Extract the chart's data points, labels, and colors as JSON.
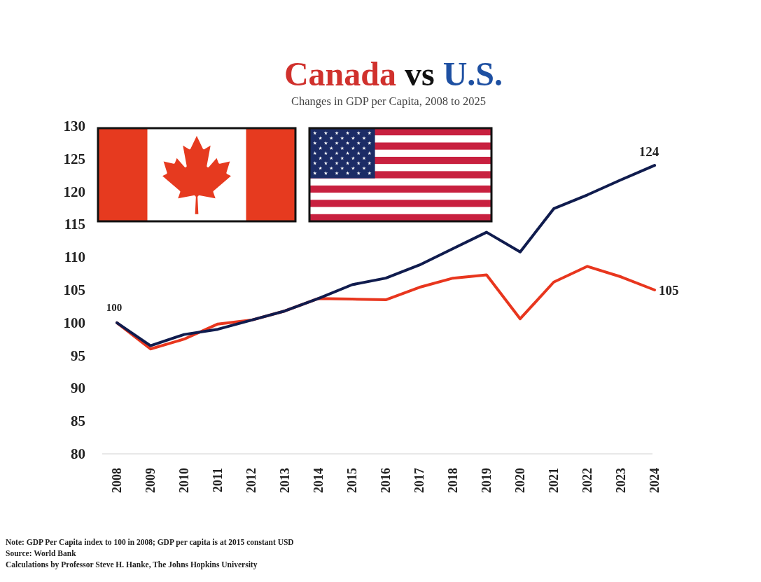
{
  "chart_data": {
    "type": "line",
    "title": "Canada vs U.S.",
    "subtitle": "Changes in GDP per Capita, 2008 to 2025",
    "categories": [
      "2008",
      "2009",
      "2010",
      "2011",
      "2012",
      "2013",
      "2014",
      "2015",
      "2016",
      "2017",
      "2018",
      "2019",
      "2020",
      "2021",
      "2022",
      "2023",
      "2024"
    ],
    "series": [
      {
        "color": "#e8361e",
        "values": [
          100,
          96.0,
          97.5,
          99.8,
          100.4,
          101.8,
          103.7,
          103.6,
          103.5,
          105.4,
          106.8,
          107.3,
          100.6,
          106.2,
          108.6,
          107.0,
          105
        ],
        "value_labels": [
          null,
          null,
          null,
          null,
          null,
          null,
          null,
          null,
          null,
          null,
          null,
          null,
          null,
          null,
          null,
          null,
          "105"
        ]
      },
      {
        "color": "#101c4e",
        "values": [
          100,
          96.5,
          98.2,
          99.0,
          100.4,
          101.8,
          103.7,
          105.8,
          106.8,
          108.8,
          111.3,
          113.8,
          110.8,
          117.4,
          119.5,
          121.8,
          124
        ],
        "value_labels": [
          "100",
          null,
          null,
          null,
          null,
          null,
          null,
          null,
          null,
          null,
          null,
          null,
          null,
          null,
          null,
          null,
          "124"
        ]
      }
    ],
    "ylim": [
      80,
      130
    ],
    "yticks": [
      80,
      85,
      90,
      95,
      100,
      105,
      110,
      115,
      120,
      125,
      130
    ],
    "annotations": [
      "Note: GDP Per Capita index to 100 in 2008; GDP per capita is at 2015 constant USD",
      "Source: World Bank",
      "Calculations by Professor Steve H. Hanke, The Johns Hopkins University"
    ]
  }
}
